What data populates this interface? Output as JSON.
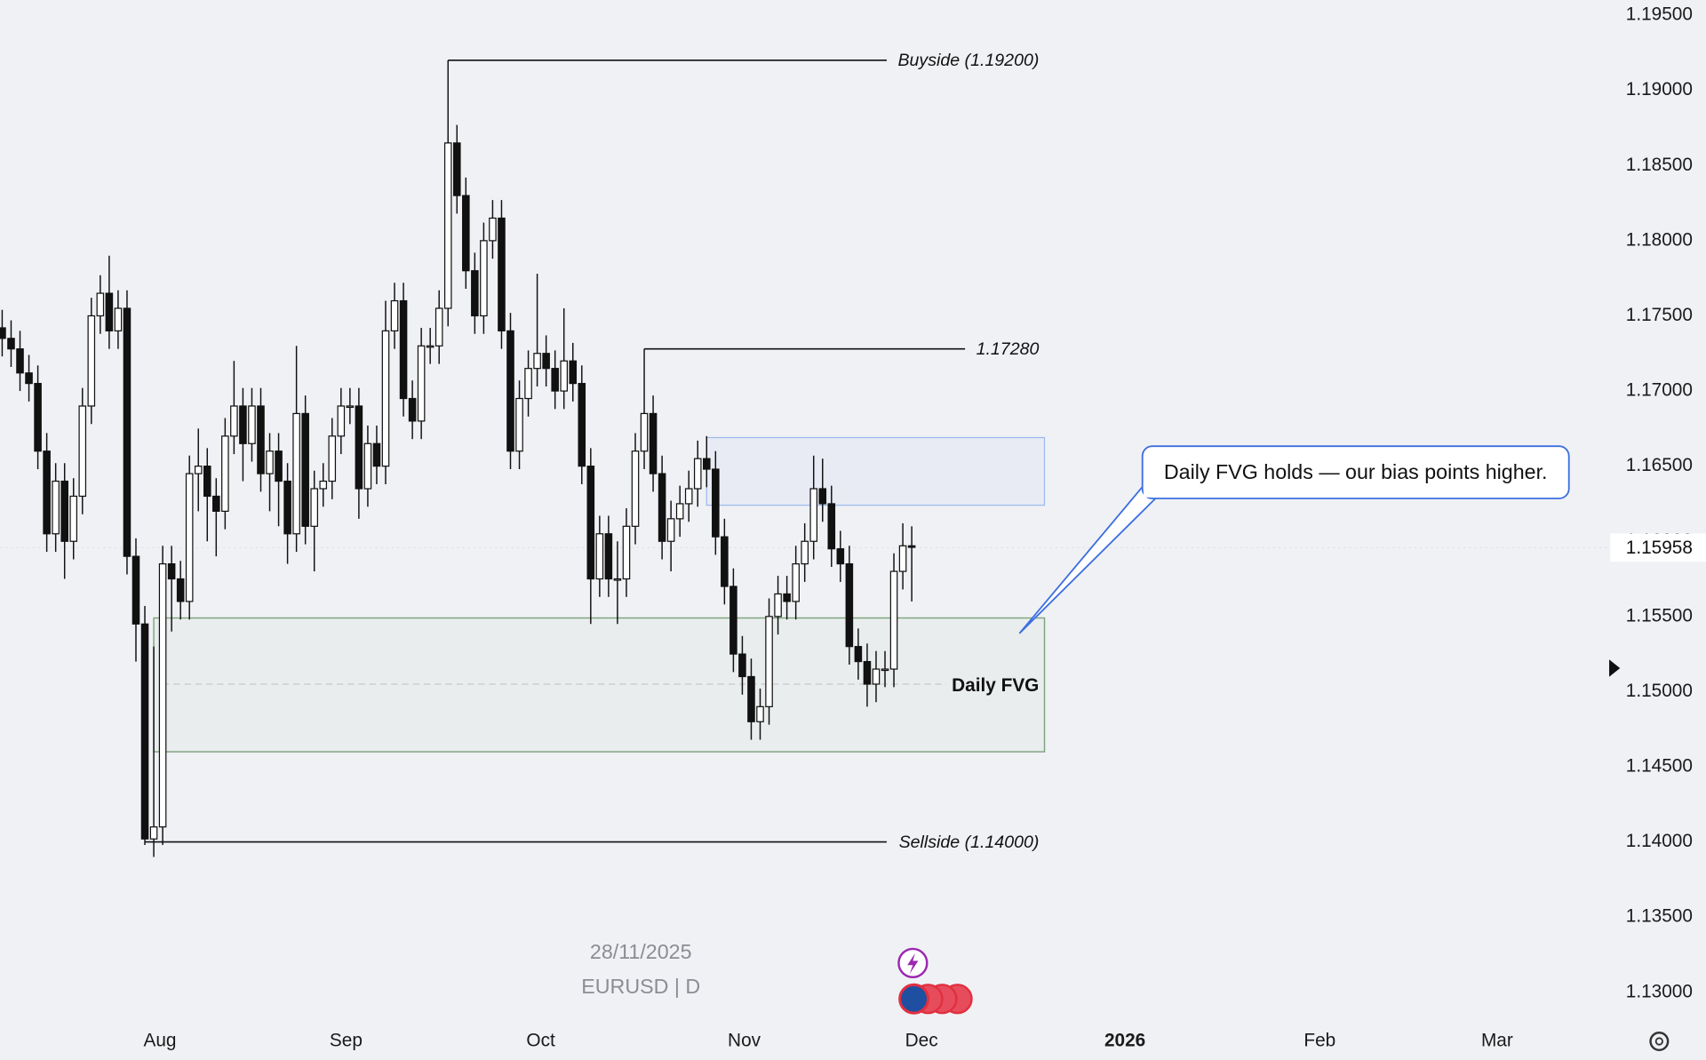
{
  "chart_data": {
    "type": "candlestick",
    "symbol": "EURUSD | D",
    "date": "28/11/2025",
    "xtick_labels": [
      "Aug",
      "Sep",
      "Oct",
      "Nov",
      "Dec",
      "2026",
      "Feb",
      "Mar"
    ],
    "ylim": [
      1.1284,
      1.196
    ],
    "yticks": [
      {
        "value": 1.195,
        "label": "1.19500"
      },
      {
        "value": 1.19,
        "label": "1.19000"
      },
      {
        "value": 1.185,
        "label": "1.18500"
      },
      {
        "value": 1.18,
        "label": "1.18000"
      },
      {
        "value": 1.175,
        "label": "1.17500"
      },
      {
        "value": 1.17,
        "label": "1.17000"
      },
      {
        "value": 1.165,
        "label": "1.16500"
      },
      {
        "value": 1.16,
        "label": "1.16000"
      },
      {
        "value": 1.155,
        "label": "1.15500"
      },
      {
        "value": 1.15,
        "label": "1.15000"
      },
      {
        "value": 1.145,
        "label": "1.14500"
      },
      {
        "value": 1.14,
        "label": "1.14000"
      },
      {
        "value": 1.135,
        "label": "1.13500"
      },
      {
        "value": 1.13,
        "label": "1.13000"
      }
    ],
    "last_price": 1.15958,
    "open": [
      1.1742,
      1.1735,
      1.1728,
      1.1712,
      1.1705,
      1.166,
      1.1605,
      1.164,
      1.16,
      1.163,
      1.169,
      1.175,
      1.1765,
      1.174,
      1.1755,
      1.159,
      1.1545,
      1.1402,
      1.141,
      1.1585,
      1.1575,
      1.156,
      1.1645,
      1.165,
      1.163,
      1.162,
      1.167,
      1.169,
      1.1665,
      1.169,
      1.1645,
      1.166,
      1.164,
      1.1605,
      1.1685,
      1.161,
      1.1635,
      1.164,
      1.167,
      1.169,
      1.169,
      1.1635,
      1.1665,
      1.165,
      1.174,
      1.176,
      1.1695,
      1.168,
      1.173,
      1.173,
      1.1755,
      1.1865,
      1.183,
      1.178,
      1.175,
      1.18,
      1.1815,
      1.174,
      1.166,
      1.1695,
      1.1715,
      1.1725,
      1.1715,
      1.17,
      1.172,
      1.1705,
      1.165,
      1.1575,
      1.1605,
      1.1575,
      1.1575,
      1.161,
      1.166,
      1.1685,
      1.1645,
      1.16,
      1.1615,
      1.1625,
      1.1635,
      1.1655,
      1.1648,
      1.1603,
      1.157,
      1.1525,
      1.151,
      1.148,
      1.149,
      1.155,
      1.1565,
      1.156,
      1.1585,
      1.16,
      1.1635,
      1.1625,
      1.1595,
      1.1585,
      1.153,
      1.152,
      1.1505,
      1.1515,
      1.1515,
      1.158,
      1.1597
    ],
    "high": [
      1.1754,
      1.1747,
      1.174,
      1.1724,
      1.1717,
      1.1672,
      1.1652,
      1.1652,
      1.1642,
      1.1702,
      1.1762,
      1.1777,
      1.179,
      1.1767,
      1.1767,
      1.1602,
      1.1557,
      1.153,
      1.1597,
      1.1597,
      1.1587,
      1.1657,
      1.1675,
      1.1662,
      1.1642,
      1.1682,
      1.172,
      1.1702,
      1.1702,
      1.1702,
      1.1672,
      1.1672,
      1.1652,
      1.173,
      1.1697,
      1.1647,
      1.1652,
      1.1682,
      1.1702,
      1.1702,
      1.1702,
      1.1677,
      1.1677,
      1.176,
      1.1772,
      1.1772,
      1.1707,
      1.1742,
      1.1742,
      1.1767,
      1.192,
      1.1877,
      1.1842,
      1.1792,
      1.1812,
      1.1827,
      1.1827,
      1.1752,
      1.1707,
      1.1727,
      1.1778,
      1.1737,
      1.1727,
      1.1755,
      1.1732,
      1.1717,
      1.1662,
      1.1617,
      1.1617,
      1.16,
      1.1622,
      1.1672,
      1.1728,
      1.1697,
      1.1657,
      1.1627,
      1.1637,
      1.1647,
      1.1667,
      1.167,
      1.166,
      1.1615,
      1.1582,
      1.1537,
      1.1522,
      1.1502,
      1.1562,
      1.1577,
      1.1577,
      1.1597,
      1.1612,
      1.1657,
      1.1655,
      1.1637,
      1.1607,
      1.1597,
      1.1542,
      1.1532,
      1.1527,
      1.1527,
      1.1592,
      1.1612,
      1.161
    ],
    "low": [
      1.1723,
      1.1716,
      1.17,
      1.1693,
      1.1648,
      1.1593,
      1.1593,
      1.1575,
      1.1588,
      1.1618,
      1.1678,
      1.1738,
      1.1728,
      1.1728,
      1.1578,
      1.152,
      1.1398,
      1.139,
      1.1398,
      1.154,
      1.1548,
      1.1548,
      1.162,
      1.16,
      1.159,
      1.1608,
      1.1658,
      1.164,
      1.1653,
      1.1633,
      1.162,
      1.161,
      1.1585,
      1.1593,
      1.1598,
      1.158,
      1.1623,
      1.1628,
      1.1658,
      1.1678,
      1.1615,
      1.1623,
      1.1638,
      1.1638,
      1.1728,
      1.1683,
      1.1668,
      1.1668,
      1.1718,
      1.1718,
      1.1743,
      1.1818,
      1.1768,
      1.1738,
      1.1738,
      1.1788,
      1.1728,
      1.1648,
      1.1648,
      1.1683,
      1.1703,
      1.1703,
      1.1688,
      1.1688,
      1.1693,
      1.1638,
      1.1545,
      1.1563,
      1.1563,
      1.1545,
      1.1563,
      1.1598,
      1.1648,
      1.1633,
      1.1588,
      1.158,
      1.1603,
      1.1613,
      1.1623,
      1.1636,
      1.1591,
      1.1558,
      1.1513,
      1.1498,
      1.1468,
      1.1468,
      1.1478,
      1.1538,
      1.1548,
      1.1548,
      1.1573,
      1.1588,
      1.1613,
      1.1583,
      1.1573,
      1.1518,
      1.1508,
      1.149,
      1.1493,
      1.1503,
      1.1503,
      1.1568,
      1.156
    ],
    "close": [
      1.1735,
      1.1728,
      1.1712,
      1.1705,
      1.166,
      1.1605,
      1.164,
      1.16,
      1.163,
      1.169,
      1.175,
      1.1765,
      1.174,
      1.1755,
      1.159,
      1.1545,
      1.1402,
      1.141,
      1.1585,
      1.1575,
      1.156,
      1.1645,
      1.165,
      1.163,
      1.162,
      1.167,
      1.169,
      1.1665,
      1.169,
      1.1645,
      1.166,
      1.164,
      1.1605,
      1.1685,
      1.161,
      1.1635,
      1.164,
      1.167,
      1.169,
      1.169,
      1.1635,
      1.1665,
      1.165,
      1.174,
      1.176,
      1.1695,
      1.168,
      1.173,
      1.173,
      1.1755,
      1.1865,
      1.183,
      1.178,
      1.175,
      1.18,
      1.1815,
      1.174,
      1.166,
      1.1695,
      1.1715,
      1.1725,
      1.1715,
      1.17,
      1.172,
      1.1705,
      1.165,
      1.1575,
      1.1605,
      1.1575,
      1.1575,
      1.161,
      1.166,
      1.1685,
      1.1645,
      1.16,
      1.1615,
      1.1625,
      1.1635,
      1.1655,
      1.1648,
      1.1603,
      1.157,
      1.1525,
      1.151,
      1.148,
      1.149,
      1.155,
      1.1565,
      1.156,
      1.1585,
      1.16,
      1.1635,
      1.1625,
      1.1595,
      1.1585,
      1.153,
      1.152,
      1.1505,
      1.1515,
      1.1515,
      1.158,
      1.1597,
      1.1596
    ],
    "levels": [
      {
        "label": "Buyside (1.19200)",
        "value": 1.192
      },
      {
        "label": "1.17280",
        "value": 1.1728
      },
      {
        "label": "Sellside (1.14000)",
        "value": 1.14
      }
    ],
    "fvg": {
      "label": "Daily FVG",
      "top": 1.1549,
      "bottom": 1.146,
      "mid": 1.1505
    },
    "supply_zone": {
      "top": 1.1669,
      "bottom": 1.1624
    },
    "callout": "Daily FVG holds — our bias points higher."
  }
}
